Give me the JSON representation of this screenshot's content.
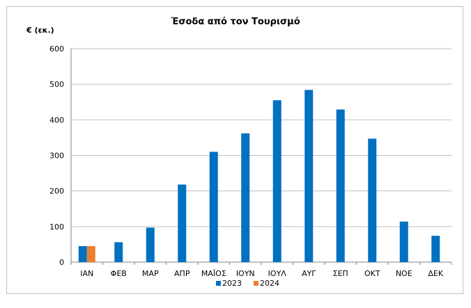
{
  "chart_data": {
    "type": "bar",
    "title": "Έσοδα από τον Τουρισμό",
    "ylabel": "€ (εκ.)",
    "xlabel": "",
    "categories": [
      "ΙΑΝ",
      "ΦΕΒ",
      "ΜΑΡ",
      "ΑΠΡ",
      "ΜΑΪΟΣ",
      "ΙΟΥΝ",
      "ΙΟΥΛ",
      "ΑΥΓ",
      "ΣΕΠ",
      "ΟΚΤ",
      "ΝΟΕ",
      "ΔΕΚ"
    ],
    "series": [
      {
        "name": "2023",
        "color": "#0070c0",
        "values": [
          45,
          56,
          97,
          218,
          310,
          362,
          455,
          484,
          429,
          347,
          114,
          74
        ]
      },
      {
        "name": "2024",
        "color": "#ed7d31",
        "values": [
          45,
          null,
          null,
          null,
          null,
          null,
          null,
          null,
          null,
          null,
          null,
          null
        ]
      }
    ],
    "ylim": [
      0,
      600
    ],
    "yticks": [
      0,
      100,
      200,
      300,
      400,
      500,
      600
    ],
    "grid": true,
    "legend": "bottom"
  }
}
